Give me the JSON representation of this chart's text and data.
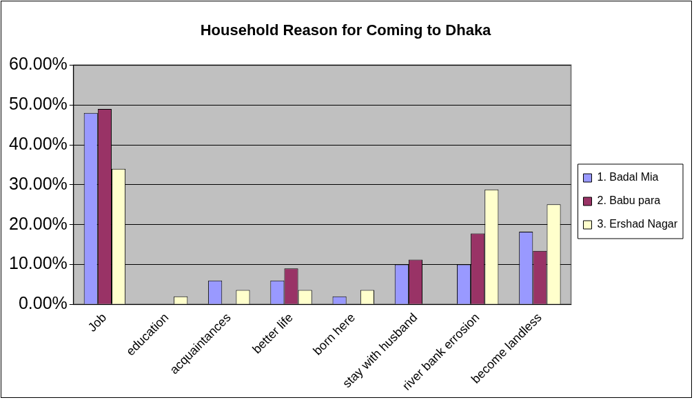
{
  "chart_data": {
    "type": "bar",
    "title": "Household Reason for Coming to Dhaka",
    "categories": [
      "Job",
      "education",
      "acquaintances",
      "better life",
      "born here",
      "stay with husband",
      "river bank errosion",
      "become landless"
    ],
    "series": [
      {
        "name": "1. Badal Mia",
        "color": "#9999ff",
        "values": [
          48,
          0,
          6,
          6,
          2,
          10,
          10,
          18.2
        ]
      },
      {
        "name": "2. Babu para",
        "color": "#993366",
        "values": [
          49,
          0,
          0,
          9,
          0,
          11.2,
          17.8,
          13.4
        ]
      },
      {
        "name": "3. Ershad Nagar",
        "color": "#ffffcc",
        "values": [
          34,
          2,
          3.6,
          3.6,
          3.6,
          0,
          28.8,
          25.1
        ]
      }
    ],
    "ylim": [
      0,
      60
    ],
    "yticks": [
      {
        "value": 0,
        "label": "0.00%"
      },
      {
        "value": 10,
        "label": "10.00%"
      },
      {
        "value": 20,
        "label": "20.00%"
      },
      {
        "value": 30,
        "label": "30.00%"
      },
      {
        "value": 40,
        "label": "40.00%"
      },
      {
        "value": 50,
        "label": "50.00%"
      },
      {
        "value": 60,
        "label": "60.00%"
      }
    ],
    "grid": "y",
    "legend": "right"
  }
}
